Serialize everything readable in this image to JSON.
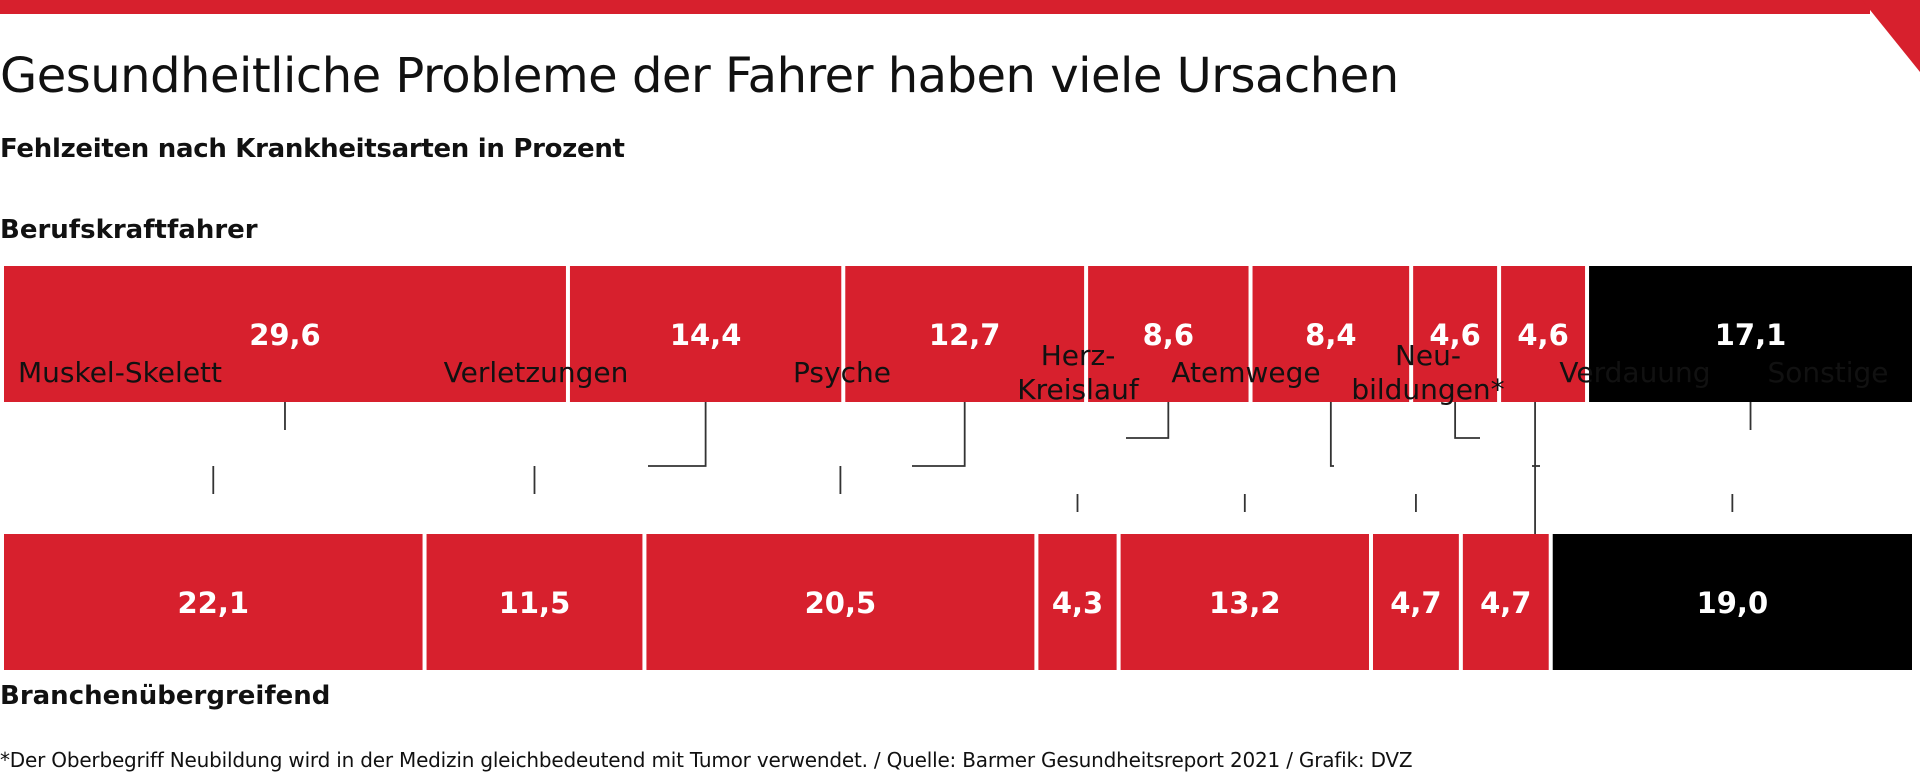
{
  "title": "Gesundheitliche Probleme der Fahrer haben viele Ursachen",
  "subtitle": "Fehlzeiten nach Krankheitsarten in Prozent",
  "footnote": "*Der Oberbegriff Neubildung wird in der Medizin gleichbedeutend mit Tumor verwendet. / Quelle: Barmer Gesundheitsreport 2021 / Grafik: DVZ",
  "colors": {
    "accent": "#d7202d",
    "other": "#000000",
    "text": "#111111",
    "value_text": "#ffffff",
    "connector": "#333333"
  },
  "chart_data": {
    "type": "bar",
    "orientation": "horizontal",
    "stacked": true,
    "unit": "Prozent",
    "categories": [
      {
        "label": "Muskel-Skelett",
        "lines": [
          "Muskel-Skelett"
        ]
      },
      {
        "label": "Verletzungen",
        "lines": [
          "Verletzungen"
        ]
      },
      {
        "label": "Psyche",
        "lines": [
          "Psyche"
        ]
      },
      {
        "label": "Herz-Kreislauf",
        "lines": [
          "Herz-",
          "Kreislauf"
        ]
      },
      {
        "label": "Atemwege",
        "lines": [
          "Atemwege"
        ]
      },
      {
        "label": "Neubildungen*",
        "lines": [
          "Neu-",
          "bildungen*"
        ]
      },
      {
        "label": "Verdauung",
        "lines": [
          "Verdauung"
        ]
      },
      {
        "label": "Sonstige",
        "lines": [
          "Sonstige"
        ]
      }
    ],
    "series": [
      {
        "name": "Berufskraftfahrer",
        "values": [
          29.6,
          14.4,
          12.7,
          8.6,
          8.4,
          4.6,
          4.6,
          17.1
        ],
        "labels": [
          "29,6",
          "14,4",
          "12,7",
          "8,6",
          "8,4",
          "4,6",
          "4,6",
          "17,1"
        ]
      },
      {
        "name": "Branchenübergreifend",
        "values": [
          22.1,
          11.5,
          20.5,
          4.3,
          13.2,
          4.7,
          4.7,
          19.0
        ],
        "labels": [
          "22,1",
          "11,5",
          "20,5",
          "4,3",
          "13,2",
          "4,7",
          "4,7",
          "19,0"
        ]
      }
    ],
    "highlight_last_category_color": "#000000",
    "legend": "none"
  }
}
